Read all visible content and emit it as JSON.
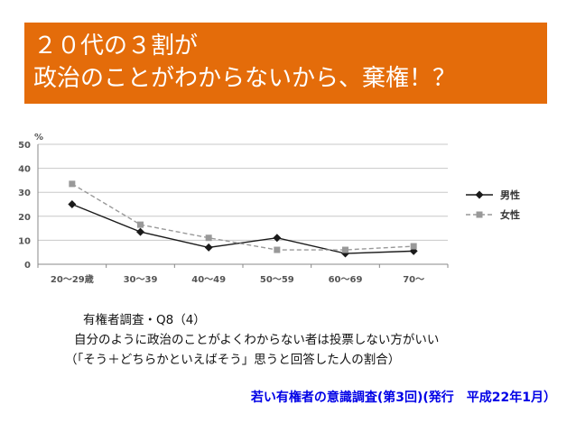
{
  "title": {
    "line1": "２０代の３割が",
    "line2": "政治のことがわからないから、棄権！？"
  },
  "chart_data": {
    "type": "line",
    "ylabel": "%",
    "ylim": [
      0,
      50
    ],
    "yticks": [
      "0",
      "10",
      "20",
      "30",
      "40",
      "50"
    ],
    "categories": [
      "20～29歳",
      "30～39",
      "40～49",
      "50～59",
      "60～69",
      "70～"
    ],
    "grid": true,
    "legend_position": "right",
    "series": [
      {
        "name": "男性",
        "values": [
          25,
          13.5,
          7,
          11,
          4.5,
          5.5
        ],
        "color": "#1a1a1a",
        "marker": "diamond",
        "dash": "solid"
      },
      {
        "name": "女性",
        "values": [
          33.5,
          16.5,
          11,
          6,
          6,
          7.5
        ],
        "color": "#999999",
        "marker": "square",
        "dash": "dashed"
      }
    ]
  },
  "caption": {
    "line1": "有権者調査・Q8（4）",
    "line2": "自分のように政治のことがよくわからない者は投票しない方がいい",
    "line3": "（「そう＋どちらかといえばそう」思うと回答した人の割合）"
  },
  "source": "若い有権者の意識調査(第3回)(発行　平成22年1月）"
}
